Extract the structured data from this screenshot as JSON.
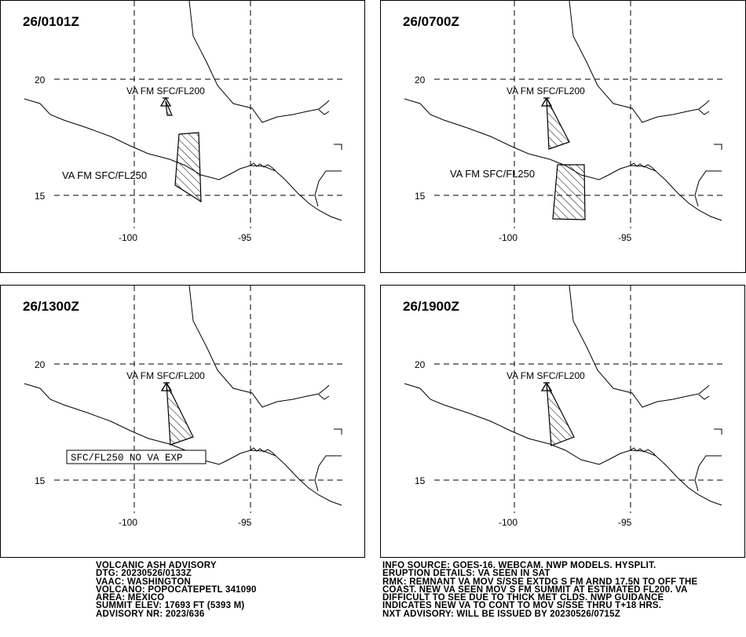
{
  "panels": [
    {
      "time": "26/0101Z",
      "labels": [
        "VA FM SFC/FL200",
        "VA FM SFC/FL250"
      ],
      "box_label": ""
    },
    {
      "time": "26/0700Z",
      "labels": [
        "VA FM SFC/FL200",
        "VA FM SFC/FL250"
      ],
      "box_label": ""
    },
    {
      "time": "26/1300Z",
      "labels": [
        "VA FM SFC/FL200"
      ],
      "box_label": "SFC/FL250 NO VA EXP"
    },
    {
      "time": "26/1900Z",
      "labels": [
        "VA FM SFC/FL200"
      ],
      "box_label": ""
    }
  ],
  "grid": {
    "lat_labels": [
      "20",
      "15"
    ],
    "lon_labels": [
      "-100",
      "-95"
    ]
  },
  "advisory_left": [
    "VOLCANIC ASH ADVISORY",
    "DTG: 20230526/0133Z",
    "VAAC: WASHINGTON",
    "VOLCANO: POPOCATEPETL 341090",
    "AREA: MEXICO",
    "SUMMIT ELEV: 17693 FT (5393 M)",
    "ADVISORY NR: 2023/636"
  ],
  "advisory_right": [
    "INFO SOURCE: GOES-16. WEBCAM. NWP MODELS. HYSPLIT.",
    "ERUPTION DETAILS: VA SEEN IN SAT",
    "RMK: REMNANT VA MOV S/SSE EXTDG S FM ARND 17.5N TO OFF THE",
    "COAST. NEW VA SEEN MOV S FM SUMMIT AT ESTIMATED FL200. VA",
    "DIFFICULT TO SEE DUE TO THICK MET CLDS. NWP GUIDANCE",
    "INDICATES NEW VA TO CONT TO MOV S/SSE THRU T+18 HRS.",
    "NXT ADVISORY: WILL BE ISSUED BY 20230526/0715Z"
  ]
}
